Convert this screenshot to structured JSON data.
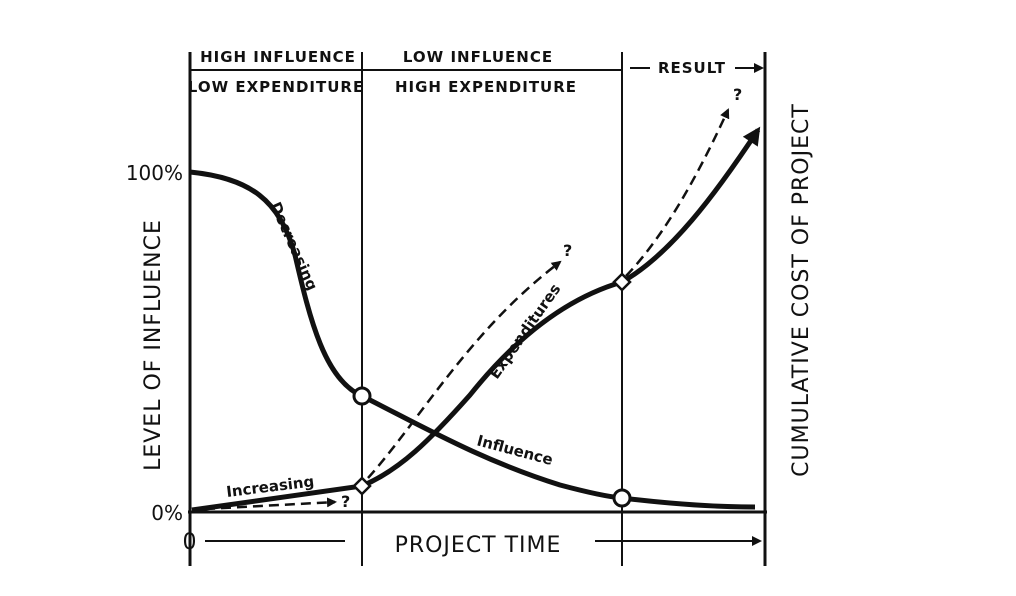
{
  "header": {
    "phase1_influence": "HIGH INFLUENCE",
    "phase1_expenditure": "LOW EXPENDITURE",
    "phase2_influence": "LOW INFLUENCE",
    "phase2_expenditure": "HIGH EXPENDITURE",
    "phase3": "RESULT"
  },
  "axes": {
    "left_label": "LEVEL OF INFLUENCE",
    "right_label": "CUMULATIVE COST OF PROJECT",
    "x_label": "PROJECT TIME",
    "y_top_tick": "100%",
    "y_bottom_tick": "0%",
    "x_origin": "0"
  },
  "curves": {
    "influence_label": "Influence",
    "decreasing_label": "Decreasing",
    "expenditures_label": "Expenditures",
    "increasing_label": "Increasing",
    "uncertain_mark": "?"
  },
  "colors": {
    "ink": "#111111",
    "background": "#ffffff"
  }
}
